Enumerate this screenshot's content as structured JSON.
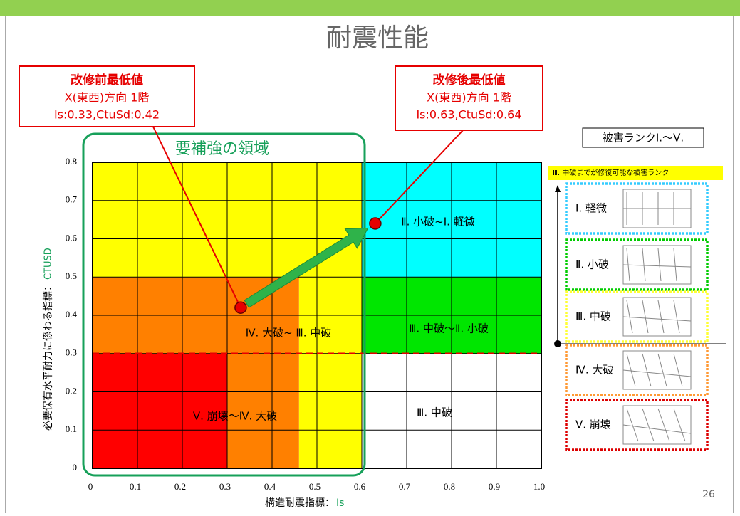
{
  "title": "耐震性能",
  "page_number": "26",
  "chart_data": {
    "type": "scatter",
    "x_label": "構造耐震指標：",
    "x_label_symbol": "Is",
    "y_label": "必要保有水平耐力に係わる指標：",
    "y_label_symbol": "CTUSD",
    "xlim": [
      0,
      1
    ],
    "ylim": [
      0,
      0.8
    ],
    "xticks": [
      0,
      0.1,
      0.2,
      0.3,
      0.4,
      0.5,
      0.6,
      0.7,
      0.8,
      0.9,
      {
        "value": 1,
        "label": "1.0"
      }
    ],
    "yticks": [
      0,
      0.1,
      0.2,
      0.3,
      0.4,
      0.5,
      0.6,
      0.7,
      0.8
    ],
    "grid": true,
    "x": [
      0.33,
      0.63
    ],
    "values": [
      0.42,
      0.64
    ],
    "color": "#e60000",
    "threshold_y": 0.3,
    "regions": [
      {
        "x": [
          0,
          0.6
        ],
        "y": [
          0.5,
          0.8
        ],
        "color": "#ffff00"
      },
      {
        "x": [
          0.46,
          0.6
        ],
        "y": [
          0,
          0.5
        ],
        "color": "#ffff00"
      },
      {
        "x": [
          0,
          0.46
        ],
        "y": [
          0.3,
          0.5
        ],
        "color": "#ff8000"
      },
      {
        "x": [
          0.3,
          0.46
        ],
        "y": [
          0,
          0.3
        ],
        "color": "#ff8000"
      },
      {
        "x": [
          0,
          0.3
        ],
        "y": [
          0,
          0.3
        ],
        "color": "#ff0000"
      },
      {
        "x": [
          0.6,
          1
        ],
        "y": [
          0.5,
          0.8
        ],
        "color": "#00ffff"
      },
      {
        "x": [
          0.6,
          1
        ],
        "y": [
          0.3,
          0.5
        ],
        "color": "#00e600"
      },
      {
        "x": [
          0.6,
          1
        ],
        "y": [
          0,
          0.3
        ],
        "color": "#ffffff"
      }
    ],
    "region_labels": [
      "Ⅱ. 小破~Ⅰ. 軽微",
      "Ⅳ. 大破~ Ⅲ. 中破",
      "Ⅲ. 中破～Ⅱ. 小破",
      "Ⅴ. 崩壊～Ⅳ. 大破",
      "Ⅲ. 中破"
    ],
    "zone_label": "要補強の領域",
    "annotations": [
      {
        "title": "改修前最低値",
        "lines": [
          "X(東西)方向 1階",
          "Is:0.33,CtuSd:0.42"
        ]
      },
      {
        "title": "改修後最低値",
        "lines": [
          "X(東西)方向 1階",
          "Is:0.63,CtuSd:0.64"
        ]
      }
    ]
  },
  "damage_panel": {
    "title": "被害ランクⅠ.～Ⅴ.",
    "note": "Ⅲ. 中破までが修復可能な被害ランク",
    "ranks": [
      {
        "label": "Ⅰ. 軽微",
        "color": "#33ccff"
      },
      {
        "label": "Ⅱ. 小破",
        "color": "#00cc00"
      },
      {
        "label": "Ⅲ. 中破",
        "color": "#ffff33"
      },
      {
        "label": "Ⅳ. 大破",
        "color": "#ff9933"
      },
      {
        "label": "Ⅴ. 崩壊",
        "color": "#dd0000"
      }
    ]
  }
}
